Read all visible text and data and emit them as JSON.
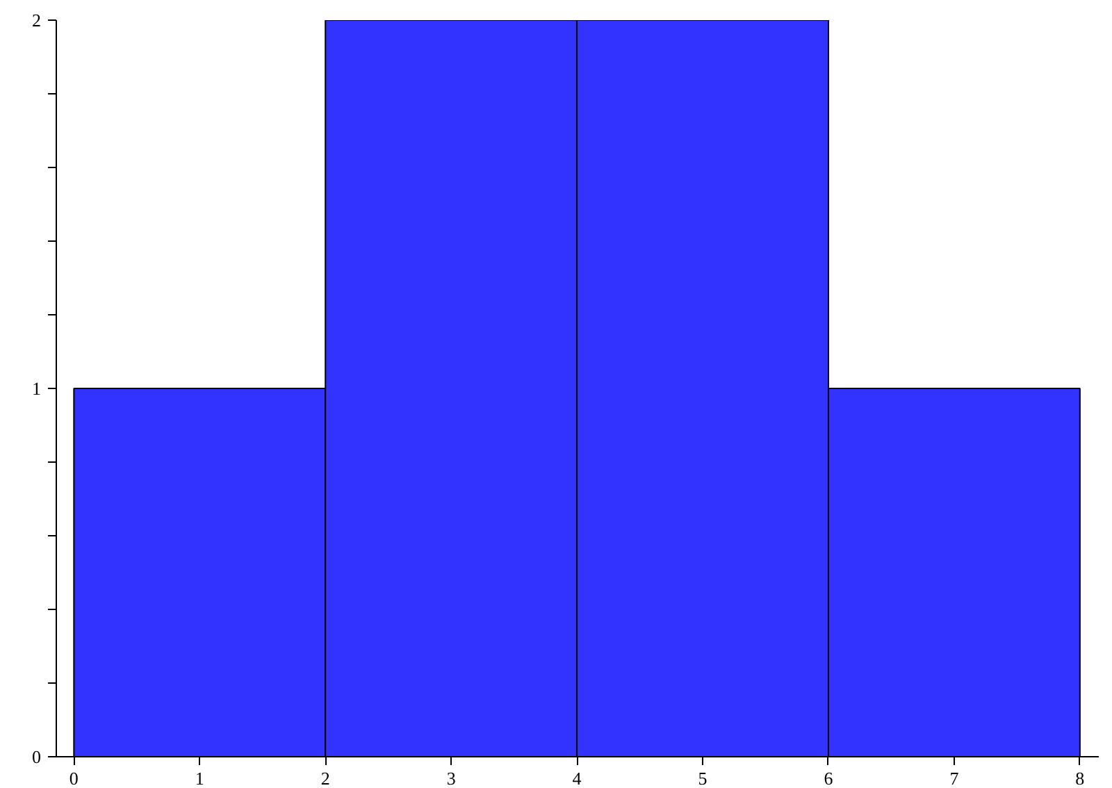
{
  "chart_data": {
    "type": "histogram",
    "bins": [
      0,
      2,
      4,
      6,
      8
    ],
    "values": [
      1,
      2,
      2,
      1
    ],
    "color": "#3333ff",
    "xlim": [
      -0.14,
      8.15
    ],
    "xticks": [
      0,
      1,
      2,
      3,
      4,
      5,
      6,
      7,
      8
    ],
    "ylim": [
      0,
      2
    ],
    "yticks": [
      0,
      {
        "value": 0.2,
        "label": null
      },
      {
        "value": 0.4,
        "label": null
      },
      {
        "value": 0.6,
        "label": null
      },
      {
        "value": 0.8,
        "label": null
      },
      1,
      {
        "value": 1.2,
        "label": null
      },
      {
        "value": 1.4,
        "label": null
      },
      {
        "value": 1.6,
        "label": null
      },
      {
        "value": 1.8,
        "label": null
      },
      2
    ],
    "grid": false
  }
}
